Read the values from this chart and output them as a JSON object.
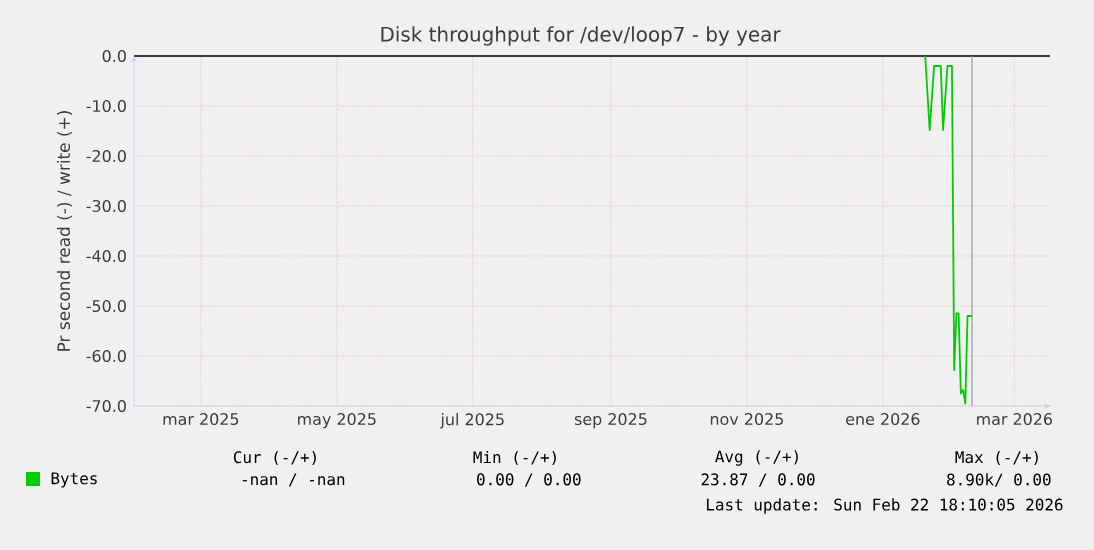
{
  "chart_data": {
    "type": "line",
    "title": "Disk throughput for /dev/loop7 - by year",
    "ylabel": "Pr second read (-) / write (+)",
    "x": [
      "2026-01-20",
      "2026-01-22",
      "2026-01-24",
      "2026-01-27",
      "2026-01-28",
      "2026-01-30",
      "2026-02-01",
      "2026-02-02",
      "2026-02-03",
      "2026-02-04",
      "2026-02-05",
      "2026-02-06",
      "2026-02-07",
      "2026-02-08",
      "2026-02-10"
    ],
    "series": [
      {
        "name": "Bytes",
        "color": "#00cc00",
        "values": [
          0,
          -14.8,
          -2,
          -2,
          -14.8,
          -2,
          -2,
          -62.8,
          -51.5,
          -51.5,
          -67.5,
          -66.8,
          -69.5,
          -52,
          -52
        ]
      }
    ],
    "xlim": [
      "2025-01-30",
      "2026-03-17"
    ],
    "xticks": [
      {
        "value": "2025-03-01",
        "label": "mar 2025"
      },
      {
        "value": "2025-05-01",
        "label": "may 2025"
      },
      {
        "value": "2025-07-01",
        "label": "jul 2025"
      },
      {
        "value": "2025-09-01",
        "label": "sep 2025"
      },
      {
        "value": "2025-11-01",
        "label": "nov 2025"
      },
      {
        "value": "2026-01-01",
        "label": "ene 2026"
      },
      {
        "value": "2026-03-01",
        "label": "mar 2026"
      }
    ],
    "ylim": [
      -70,
      0
    ],
    "yticks": [
      {
        "value": 0,
        "label": "0.0"
      },
      {
        "value": -10,
        "label": "-10.0"
      },
      {
        "value": -20,
        "label": "-20.0"
      },
      {
        "value": -30,
        "label": "-30.0"
      },
      {
        "value": -40,
        "label": "-40.0"
      },
      {
        "value": -50,
        "label": "-50.0"
      },
      {
        "value": -60,
        "label": "-60.0"
      },
      {
        "value": -70,
        "label": "-70.0"
      }
    ],
    "grid": true,
    "legend": "bottom",
    "ref_lines": [
      {
        "axis": "y",
        "value": 0,
        "color": "#000000"
      },
      {
        "axis": "x",
        "value": "2026-02-10",
        "color": "#999999"
      }
    ],
    "annotations": [
      "Cur (-/+)",
      "Min (-/+)",
      "Avg (-/+)",
      "Max (-/+)",
      "-nan / -nan",
      "0.00 / 0.00",
      "23.87 / 0.00",
      "8.90k/ 0.00",
      "Last update: Sun Feb 22 18:10:05 2026"
    ]
  }
}
